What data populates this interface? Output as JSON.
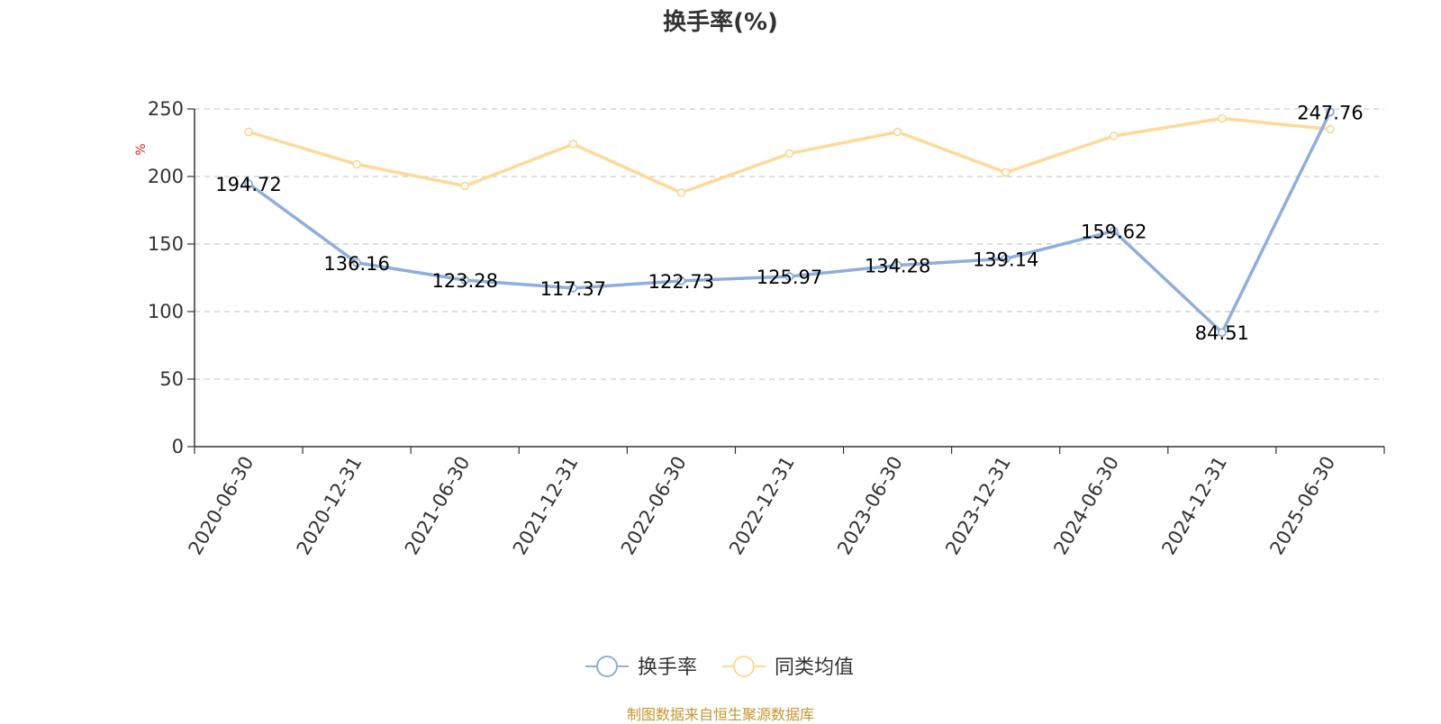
{
  "title": "换手率(%)",
  "source": "制图数据来自恒生聚源数据库",
  "chart_data": {
    "type": "line",
    "title": "换手率(%)",
    "ylabel": "%",
    "xlabel": "",
    "ylim": [
      0,
      250
    ],
    "yticks": [
      0,
      50,
      100,
      150,
      200,
      250
    ],
    "grid": true,
    "legend_position": "bottom-center",
    "categories": [
      "2020-06-30",
      "2020-12-31",
      "2021-06-30",
      "2021-12-31",
      "2022-06-30",
      "2022-12-31",
      "2023-06-30",
      "2023-12-31",
      "2024-06-30",
      "2024-12-31",
      "2025-06-30"
    ],
    "series": [
      {
        "name": "换手率",
        "color": "#8eaedb",
        "values": [
          194.72,
          136.16,
          123.28,
          117.37,
          122.73,
          125.97,
          134.28,
          139.14,
          159.62,
          84.51,
          247.76
        ],
        "labels": [
          "194.72",
          "136.16",
          "123.28",
          "117.37",
          "122.73",
          "125.97",
          "134.28",
          "139.14",
          "159.62",
          "84.51",
          "247.76"
        ]
      },
      {
        "name": "同类均值",
        "color": "#fdd99a",
        "values": [
          233,
          209,
          193,
          224,
          188,
          217,
          233,
          203,
          230,
          243,
          235
        ]
      }
    ]
  }
}
